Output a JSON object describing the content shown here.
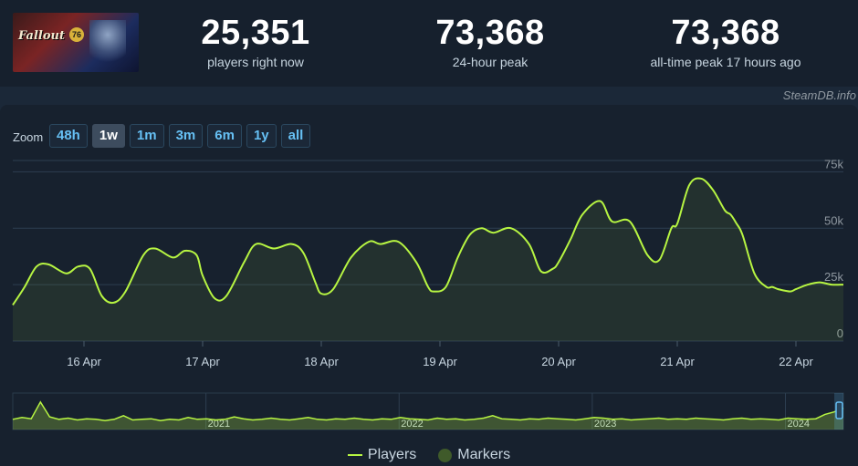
{
  "header": {
    "game_logo_text": "Fallout",
    "game_logo_badge": "76",
    "stats": [
      {
        "value": "25,351",
        "label": "players right now"
      },
      {
        "value": "73,368",
        "label": "24-hour peak"
      },
      {
        "value": "73,368",
        "label": "all-time peak 17 hours ago"
      }
    ],
    "credit": "SteamDB.info"
  },
  "zoom": {
    "label": "Zoom",
    "options": [
      "48h",
      "1w",
      "1m",
      "3m",
      "6m",
      "1y",
      "all"
    ],
    "selected": "1w"
  },
  "colors": {
    "line": "#b7f542",
    "accent": "#66c0f4",
    "marker": "#3f5a2a",
    "grid": "#2d3e50"
  },
  "chart_data": {
    "type": "line",
    "series": [
      {
        "name": "Players",
        "x": [
          15.4,
          15.5,
          15.6,
          15.7,
          15.85,
          15.95,
          16.05,
          16.15,
          16.25,
          16.35,
          16.5,
          16.6,
          16.75,
          16.85,
          16.95,
          17.0,
          17.1,
          17.2,
          17.35,
          17.45,
          17.6,
          17.75,
          17.85,
          17.95,
          18.0,
          18.1,
          18.25,
          18.4,
          18.5,
          18.65,
          18.8,
          18.9,
          18.95,
          19.05,
          19.15,
          19.25,
          19.35,
          19.45,
          19.6,
          19.75,
          19.85,
          19.95,
          20.0,
          20.1,
          20.2,
          20.35,
          20.45,
          20.6,
          20.75,
          20.85,
          20.95,
          21.0,
          21.1,
          21.2,
          21.3,
          21.4,
          21.45,
          21.5,
          21.55,
          21.65,
          21.75,
          21.8,
          21.85,
          21.95,
          22.0,
          22.1,
          22.2,
          22.3,
          22.4
        ],
        "y": [
          16,
          24,
          33,
          34,
          30,
          33,
          32,
          20,
          17,
          22,
          38,
          41,
          37,
          40,
          38,
          29,
          19,
          20,
          35,
          43,
          41,
          43,
          39,
          26,
          21,
          23,
          37,
          44,
          43,
          44,
          35,
          24,
          22,
          24,
          37,
          47,
          50,
          48,
          50,
          43,
          31,
          32,
          35,
          45,
          56,
          62,
          53,
          53,
          38,
          36,
          50,
          52,
          69,
          72,
          67,
          58,
          56,
          52,
          47,
          30,
          24,
          24,
          23,
          22,
          23,
          25,
          26,
          25,
          25
        ]
      }
    ],
    "x_ticks": [
      "16 Apr",
      "17 Apr",
      "18 Apr",
      "19 Apr",
      "20 Apr",
      "21 Apr",
      "22 Apr"
    ],
    "x_tick_values": [
      16,
      17,
      18,
      19,
      20,
      21,
      22
    ],
    "y_ticks": [
      "0",
      "25k",
      "50k",
      "75k"
    ],
    "y_tick_values": [
      0,
      25,
      50,
      75
    ],
    "y_unit": "thousands of players",
    "xlim": [
      15.4,
      22.4
    ],
    "ylim": [
      0,
      80
    ],
    "grid": true,
    "legend": [
      "Players",
      "Markers"
    ],
    "legend_position": "bottom-center",
    "navigator": {
      "year_labels": [
        "2021",
        "2022",
        "2023",
        "2024"
      ],
      "year_positions": [
        2021,
        2022,
        2023,
        2024
      ],
      "range": [
        2020.0,
        2024.3
      ],
      "series_values": [
        12,
        15,
        13,
        40,
        16,
        12,
        14,
        11,
        13,
        12,
        10,
        12,
        18,
        11,
        12,
        13,
        10,
        12,
        11,
        15,
        12,
        13,
        11,
        12,
        16,
        13,
        11,
        12,
        14,
        12,
        11,
        13,
        15,
        12,
        11,
        13,
        12,
        14,
        12,
        11,
        13,
        12,
        15,
        13,
        12,
        11,
        14,
        12,
        13,
        11,
        12,
        14,
        18,
        13,
        12,
        11,
        13,
        12,
        14,
        13,
        12,
        11,
        13,
        15,
        14,
        12,
        13,
        11,
        12,
        13,
        14,
        12,
        13,
        12,
        14,
        13,
        12,
        11,
        13,
        14,
        12,
        13,
        12,
        11,
        14,
        13,
        12,
        13,
        20,
        24,
        30
      ]
    }
  }
}
